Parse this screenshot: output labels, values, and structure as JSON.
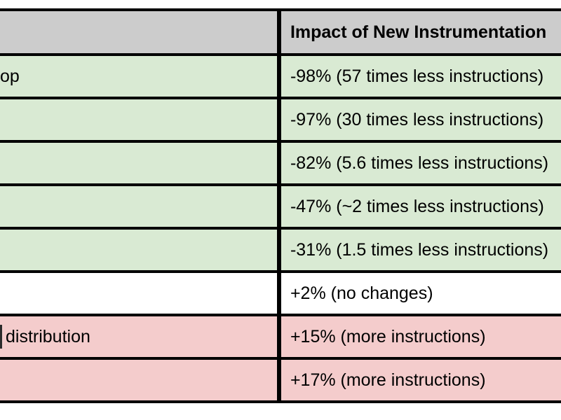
{
  "table": {
    "header": {
      "left_label": "",
      "right_label": "Impact of New Instrumentation"
    },
    "rows": [
      {
        "left": "op",
        "right": "-98% (57 times less instructions)",
        "status": "improved"
      },
      {
        "left": "",
        "right": "-97% (30 times less instructions)",
        "status": "improved"
      },
      {
        "left": "",
        "right": "-82% (5.6 times less instructions)",
        "status": "improved"
      },
      {
        "left": "",
        "right": "-47% (~2 times less instructions)",
        "status": "improved"
      },
      {
        "left": "",
        "right": "-31% (1.5 times less instructions)",
        "status": "improved"
      },
      {
        "left": "",
        "right": "+2% (no changes)",
        "status": "neutral"
      },
      {
        "left": "distribution",
        "right": "+15% (more instructions)",
        "status": "regressed"
      },
      {
        "left": "",
        "right": "+17% (more instructions)",
        "status": "regressed"
      }
    ],
    "colors": {
      "header": "#cccccc",
      "improved": "#d9ead3",
      "neutral": "#ffffff",
      "regressed": "#f4cccc",
      "border": "#000000",
      "text": "#000000"
    }
  },
  "chart_data": {
    "type": "table",
    "columns": [
      "",
      "Impact of New Instrumentation"
    ],
    "rows": [
      [
        "op",
        "-98% (57 times less instructions)"
      ],
      [
        "",
        "-97% (30 times less instructions)"
      ],
      [
        "",
        "-82% (5.6 times less instructions)"
      ],
      [
        "",
        "-47% (~2 times less instructions)"
      ],
      [
        "",
        "-31% (1.5 times less instructions)"
      ],
      [
        "",
        "+2% (no changes)"
      ],
      [
        "distribution",
        "+15% (more instructions)"
      ],
      [
        "",
        "+17% (more instructions)"
      ]
    ],
    "impact_percent_values": [
      -98,
      -97,
      -82,
      -47,
      -31,
      2,
      15,
      17
    ]
  }
}
